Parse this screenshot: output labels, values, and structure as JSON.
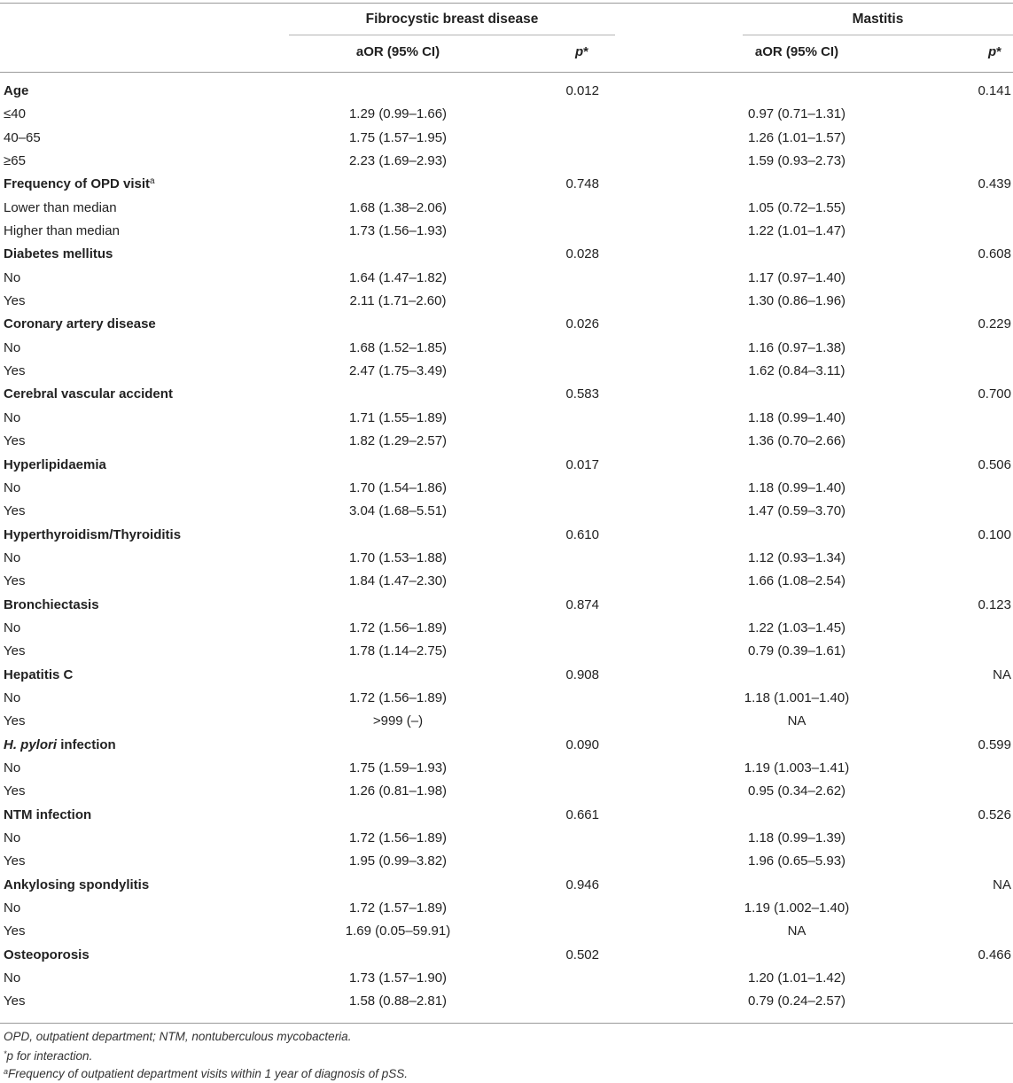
{
  "header": {
    "group1": "Fibrocystic breast disease",
    "group2": "Mastitis",
    "aor_label": "aOR (95% CI)",
    "p_label": "p",
    "p_suffix": "*"
  },
  "rows": [
    {
      "type": "group",
      "label": "Age",
      "p1": "0.012",
      "p2": "0.141"
    },
    {
      "type": "sub",
      "label": "≤40",
      "c1": "1.29 (0.99–1.66)",
      "c2": "0.97 (0.71–1.31)"
    },
    {
      "type": "sub",
      "label": "40–65",
      "c1": "1.75 (1.57–1.95)",
      "c2": "1.26 (1.01–1.57)"
    },
    {
      "type": "sub",
      "label": "≥65",
      "c1": "2.23 (1.69–2.93)",
      "c2": "1.59 (0.93–2.73)"
    },
    {
      "type": "group",
      "label": "Frequency of OPD visit",
      "sup": "a",
      "p1": "0.748",
      "p2": "0.439"
    },
    {
      "type": "sub",
      "label": "Lower than median",
      "c1": "1.68 (1.38–2.06)",
      "c2": "1.05 (0.72–1.55)"
    },
    {
      "type": "sub",
      "label": "Higher than median",
      "c1": "1.73 (1.56–1.93)",
      "c2": "1.22 (1.01–1.47)"
    },
    {
      "type": "group",
      "label": "Diabetes mellitus",
      "p1": "0.028",
      "p2": "0.608"
    },
    {
      "type": "sub",
      "label": "No",
      "c1": "1.64 (1.47–1.82)",
      "c2": "1.17 (0.97–1.40)"
    },
    {
      "type": "sub",
      "label": "Yes",
      "c1": "2.11 (1.71–2.60)",
      "c2": "1.30 (0.86–1.96)"
    },
    {
      "type": "group",
      "label": "Coronary artery disease",
      "p1": "0.026",
      "p2": "0.229"
    },
    {
      "type": "sub",
      "label": "No",
      "c1": "1.68 (1.52–1.85)",
      "c2": "1.16 (0.97–1.38)"
    },
    {
      "type": "sub",
      "label": "Yes",
      "c1": "2.47 (1.75–3.49)",
      "c2": "1.62 (0.84–3.11)"
    },
    {
      "type": "group",
      "label": "Cerebral vascular accident",
      "p1": "0.583",
      "p2": "0.700"
    },
    {
      "type": "sub",
      "label": "No",
      "c1": "1.71 (1.55–1.89)",
      "c2": "1.18 (0.99–1.40)"
    },
    {
      "type": "sub",
      "label": "Yes",
      "c1": "1.82 (1.29–2.57)",
      "c2": "1.36 (0.70–2.66)"
    },
    {
      "type": "group",
      "label": "Hyperlipidaemia",
      "p1": "0.017",
      "p2": "0.506"
    },
    {
      "type": "sub",
      "label": "No",
      "c1": "1.70 (1.54–1.86)",
      "c2": "1.18 (0.99–1.40)"
    },
    {
      "type": "sub",
      "label": "Yes",
      "c1": "3.04 (1.68–5.51)",
      "c2": "1.47 (0.59–3.70)"
    },
    {
      "type": "group",
      "label": "Hyperthyroidism/Thyroiditis",
      "p1": "0.610",
      "p2": "0.100"
    },
    {
      "type": "sub",
      "label": "No",
      "c1": "1.70 (1.53–1.88)",
      "c2": "1.12 (0.93–1.34)"
    },
    {
      "type": "sub",
      "label": "Yes",
      "c1": "1.84 (1.47–2.30)",
      "c2": "1.66 (1.08–2.54)"
    },
    {
      "type": "group",
      "label": "Bronchiectasis",
      "p1": "0.874",
      "p2": "0.123"
    },
    {
      "type": "sub",
      "label": "No",
      "c1": "1.72 (1.56–1.89)",
      "c2": "1.22 (1.03–1.45)"
    },
    {
      "type": "sub",
      "label": "Yes",
      "c1": "1.78 (1.14–2.75)",
      "c2": "0.79 (0.39–1.61)"
    },
    {
      "type": "group",
      "label": "Hepatitis C",
      "p1": "0.908",
      "p2": "NA"
    },
    {
      "type": "sub",
      "label": "No",
      "c1": "1.72 (1.56–1.89)",
      "c2": "1.18 (1.001–1.40)"
    },
    {
      "type": "sub",
      "label": "Yes",
      "c1": ">999 (–)",
      "c2": "NA"
    },
    {
      "type": "group",
      "label": "infection",
      "italic_prefix": "H. pylori",
      "p1": "0.090",
      "p2": "0.599"
    },
    {
      "type": "sub",
      "label": "No",
      "c1": "1.75 (1.59–1.93)",
      "c2": "1.19 (1.003–1.41)"
    },
    {
      "type": "sub",
      "label": "Yes",
      "c1": "1.26 (0.81–1.98)",
      "c2": "0.95 (0.34–2.62)"
    },
    {
      "type": "group",
      "label": "NTM infection",
      "p1": "0.661",
      "p2": "0.526"
    },
    {
      "type": "sub",
      "label": "No",
      "c1": "1.72 (1.56–1.89)",
      "c2": "1.18 (0.99–1.39)"
    },
    {
      "type": "sub",
      "label": "Yes",
      "c1": "1.95 (0.99–3.82)",
      "c2": "1.96 (0.65–5.93)"
    },
    {
      "type": "group",
      "label": "Ankylosing spondylitis",
      "p1": "0.946",
      "p2": "NA"
    },
    {
      "type": "sub",
      "label": "No",
      "c1": "1.72 (1.57–1.89)",
      "c2": "1.19 (1.002–1.40)"
    },
    {
      "type": "sub",
      "label": "Yes",
      "c1": "1.69 (0.05–59.91)",
      "c2": "NA"
    },
    {
      "type": "group",
      "label": "Osteoporosis",
      "p1": "0.502",
      "p2": "0.466"
    },
    {
      "type": "sub",
      "label": "No",
      "c1": "1.73 (1.57–1.90)",
      "c2": "1.20 (1.01–1.42)"
    },
    {
      "type": "sub",
      "label": "Yes",
      "c1": "1.58 (0.88–2.81)",
      "c2": "0.79 (0.24–2.57)"
    }
  ],
  "footnotes": {
    "abbrev": "OPD, outpatient department; NTM, nontuberculous mycobacteria.",
    "star_sup": "*",
    "star_text": "p for interaction.",
    "a_sup": "a",
    "a_text": "Frequency of outpatient department visits within 1 year of diagnosis of pSS."
  }
}
